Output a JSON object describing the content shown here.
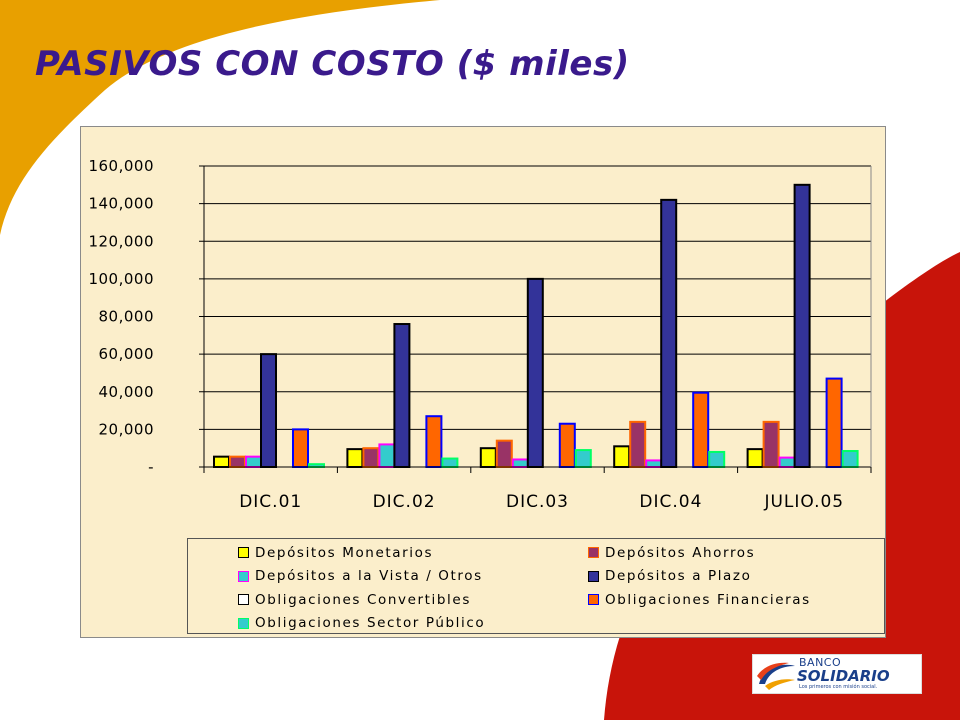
{
  "slide": {
    "title": "PASIVOS CON COSTO ($ miles)"
  },
  "logo": {
    "line1": "BANCO",
    "line2": "SOLIDARIO",
    "tagline": "Los primeros con misión social."
  },
  "colors": {
    "background_arc": "#e8a000",
    "background_corner": "#c8140a",
    "title": "#3a1a8c",
    "plot_background": "#fbeecb"
  },
  "chart_data": {
    "type": "bar",
    "title": "",
    "xlabel": "",
    "ylabel": "",
    "ylim": [
      0,
      160000
    ],
    "yticks": [
      0,
      20000,
      40000,
      60000,
      80000,
      100000,
      120000,
      140000,
      160000
    ],
    "ytick_labels": [
      "-",
      "20,000",
      "40,000",
      "60,000",
      "80,000",
      "100,000",
      "120,000",
      "140,000",
      "160,000"
    ],
    "grid": true,
    "legend_position": "bottom",
    "categories": [
      "DIC.01",
      "DIC.02",
      "DIC.03",
      "DIC.04",
      "JULIO.05"
    ],
    "series": [
      {
        "name": "Depósitos Monetarios",
        "color": "#ffff00",
        "border": "#000000",
        "values": [
          5500,
          9500,
          10000,
          11000,
          9500
        ]
      },
      {
        "name": "Depósitos Ahorros",
        "color": "#993366",
        "border": "#ff6600",
        "values": [
          5500,
          10000,
          14000,
          24000,
          24000
        ]
      },
      {
        "name": "Depósitos a la Vista / Otros",
        "color": "#33cccc",
        "border": "#ff00ff",
        "values": [
          5500,
          12000,
          4000,
          3500,
          5000
        ]
      },
      {
        "name": "Depósitos a Plazo",
        "color": "#333399",
        "border": "#000000",
        "values": [
          60000,
          76000,
          100000,
          142000,
          150000
        ]
      },
      {
        "name": "Obligaciones Convertibles",
        "color": "#ffffff",
        "border": "#000000",
        "values": [
          0,
          0,
          0,
          0,
          0
        ]
      },
      {
        "name": "Obligaciones Financieras",
        "color": "#ff6600",
        "border": "#0000ff",
        "values": [
          20000,
          27000,
          23000,
          39500,
          47000
        ]
      },
      {
        "name": "Obligaciones Sector Público",
        "color": "#33cccc",
        "border": "#00ff66",
        "values": [
          1500,
          4500,
          9000,
          8000,
          8500
        ]
      }
    ]
  }
}
